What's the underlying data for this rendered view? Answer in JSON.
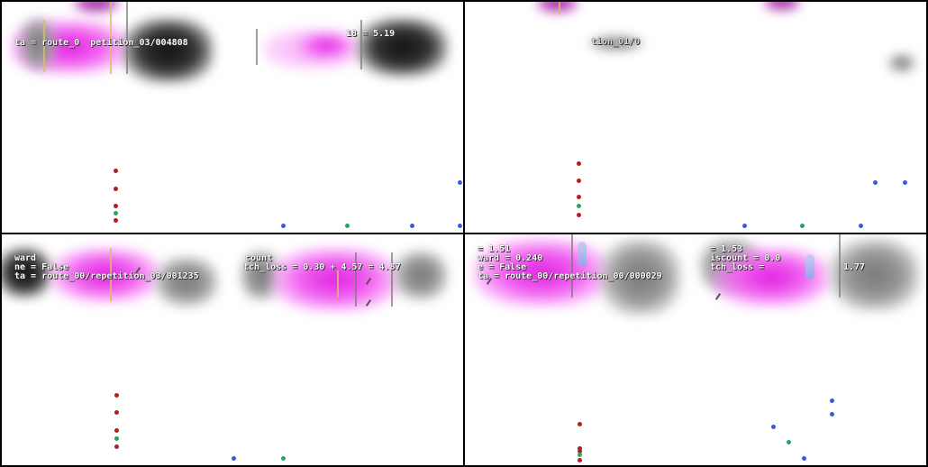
{
  "colors": {
    "background": "#000000",
    "panel": "#ffffff",
    "route_dot": "#b02020",
    "target_dot": "#30a060",
    "vehicle_dot": "#3a5ad8",
    "heatmap_accent": "#e020e0"
  },
  "panels": [
    {
      "overlays": {
        "left_line1": "",
        "left_line2": "ta = route_0  petition_03/004808",
        "right_line1": "18 = 5.19",
        "right_line2": ""
      }
    },
    {
      "overlays": {
        "left_line1": "",
        "left_line2": "",
        "right_line1": "tion_01/0",
        "right_line2": ""
      }
    },
    {
      "overlays": {
        "left_line1": "ward",
        "left_line2": "ne = False",
        "left_line3": "ta = route_00/repetition_03/001235",
        "right_line1": "count",
        "right_line2": "tch_loss = 0.30 + 4.57 = 4.87"
      }
    },
    {
      "overlays": {
        "left_line1": "= 1.51",
        "left_line2": "ward = 0.240",
        "left_line3": "e = False",
        "left_line4": "ta = route_00/repetition_00/000029",
        "right_line1": "= 1.53",
        "right_line2": "iscount = 0.0",
        "right_line3": "tch_loss =",
        "right_line4": "1.77"
      }
    }
  ]
}
